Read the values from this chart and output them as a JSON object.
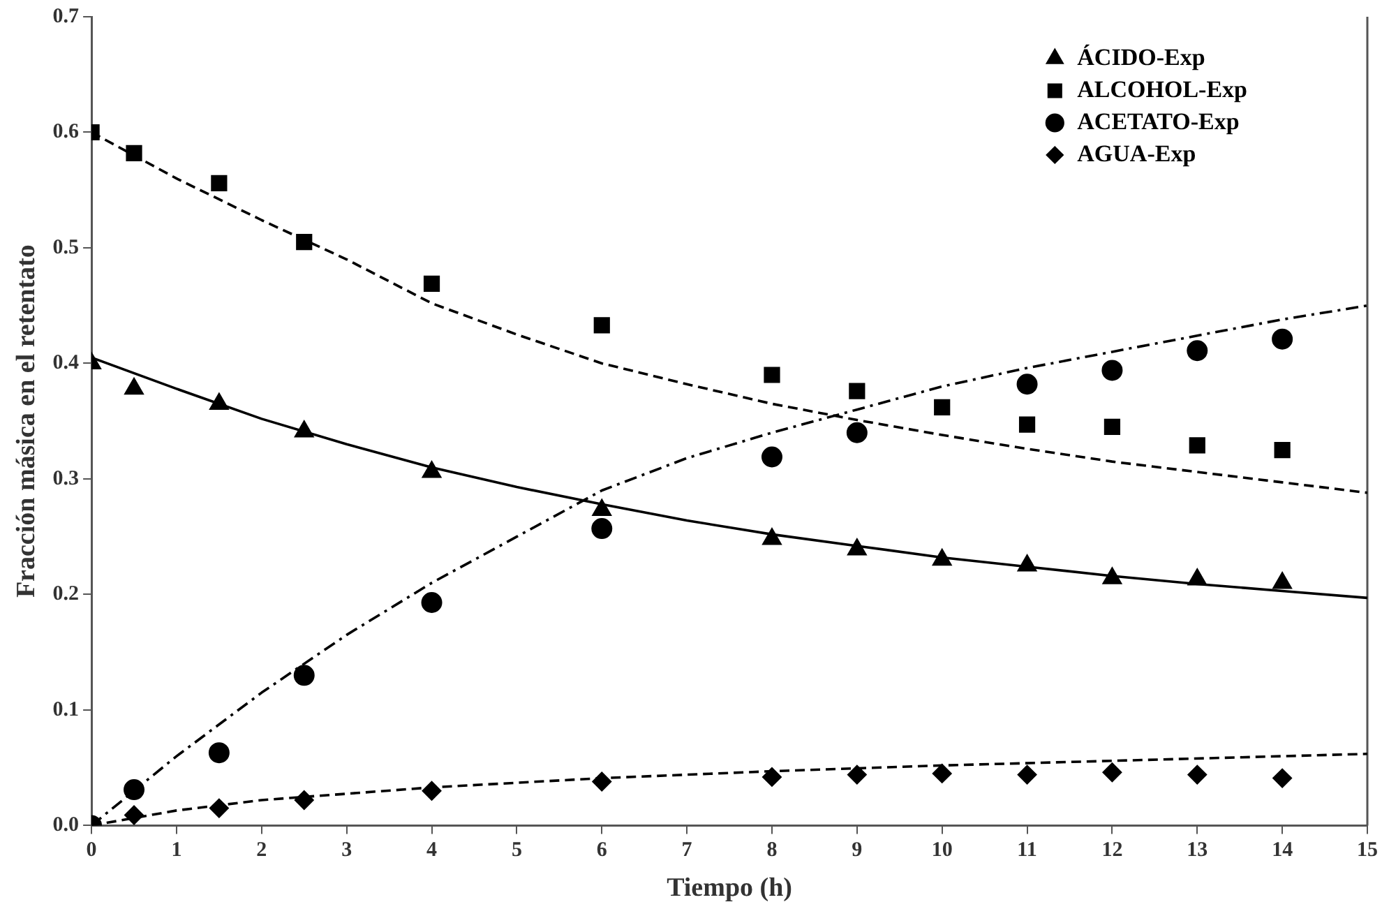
{
  "chart_data": {
    "type": "scatter",
    "xlabel": "Tiempo (h)",
    "ylabel": "Fracción másica en el retentato",
    "xlim": [
      0,
      15
    ],
    "xticks": [
      0,
      1,
      2,
      3,
      4,
      5,
      6,
      7,
      8,
      9,
      10,
      11,
      12,
      13,
      14,
      15
    ],
    "ylim": [
      0,
      0.7
    ],
    "yticks": [
      {
        "value": 0,
        "label": "0.0"
      },
      {
        "value": 0.1,
        "label": "0.1"
      },
      {
        "value": 0.2,
        "label": "0.2"
      },
      {
        "value": 0.3,
        "label": "0.3"
      },
      {
        "value": 0.4,
        "label": "0.4"
      },
      {
        "value": 0.5,
        "label": "0.5"
      },
      {
        "value": 0.6,
        "label": "0.6"
      },
      {
        "value": 0.7,
        "label": "0.7"
      }
    ],
    "grid": false,
    "legend": "top right",
    "x": [
      0,
      0.5,
      1.5,
      2.5,
      4,
      6,
      8,
      9,
      10,
      11,
      12,
      13,
      14
    ],
    "series": [
      {
        "name": "ÁCIDO-Exp",
        "color": "#000000",
        "marker": "triangle",
        "values": [
          0.4,
          0.378,
          0.365,
          0.341,
          0.306,
          0.273,
          0.248,
          0.239,
          0.23,
          0.225,
          0.214,
          0.213,
          0.21
        ]
      },
      {
        "name": "ALCOHOL-Exp",
        "color": "#000000",
        "marker": "square",
        "values": [
          0.6,
          0.582,
          0.556,
          0.505,
          0.469,
          0.433,
          0.39,
          0.376,
          0.362,
          0.347,
          0.345,
          0.329,
          0.325
        ]
      },
      {
        "name": "ACETATO-Exp",
        "color": "#000000",
        "marker": "circle",
        "values": [
          0,
          0.031,
          0.063,
          0.13,
          0.193,
          0.257,
          0.319,
          0.34,
          null,
          0.382,
          0.394,
          0.411,
          0.421
        ]
      },
      {
        "name": "AGUA-Exp",
        "color": "#000000",
        "marker": "diamond",
        "values": [
          null,
          0.009,
          0.015,
          0.022,
          0.03,
          0.038,
          0.042,
          0.044,
          0.045,
          0.044,
          0.046,
          0.044,
          0.041
        ]
      },
      {
        "type": "line",
        "color": "#000000",
        "line_style": "solid",
        "marker": "none",
        "x": [
          0,
          1,
          2,
          3,
          4,
          5,
          6,
          7,
          8,
          9,
          10,
          11,
          12,
          13,
          14,
          15
        ],
        "values": [
          0.405,
          0.378,
          0.352,
          0.33,
          0.31,
          0.293,
          0.278,
          0.264,
          0.252,
          0.242,
          0.232,
          0.224,
          0.216,
          0.209,
          0.203,
          0.197
        ]
      },
      {
        "type": "line",
        "color": "#000000",
        "line_style": "dashed",
        "marker": "none",
        "x": [
          0,
          1,
          2,
          3,
          4,
          5,
          6,
          7,
          8,
          9,
          10,
          11,
          12,
          13,
          14,
          15
        ],
        "values": [
          0.6,
          0.56,
          0.524,
          0.49,
          0.452,
          0.425,
          0.4,
          0.382,
          0.365,
          0.351,
          0.338,
          0.326,
          0.315,
          0.306,
          0.297,
          0.288
        ]
      },
      {
        "type": "line",
        "color": "#000000",
        "line_style": "dashdot",
        "marker": "none",
        "x": [
          0,
          0.5,
          1,
          2,
          3,
          4,
          5,
          6,
          7,
          8,
          9,
          10,
          11,
          12,
          13,
          14,
          15
        ],
        "values": [
          0,
          0.03,
          0.06,
          0.115,
          0.165,
          0.21,
          0.25,
          0.29,
          0.318,
          0.34,
          0.36,
          0.38,
          0.396,
          0.41,
          0.424,
          0.438,
          0.45
        ]
      },
      {
        "type": "line",
        "color": "#000000",
        "line_style": "dashed",
        "marker": "none",
        "x": [
          0,
          1,
          2,
          4,
          6,
          8,
          10,
          12,
          15
        ],
        "values": [
          0,
          0.013,
          0.022,
          0.033,
          0.041,
          0.047,
          0.052,
          0.056,
          0.062
        ]
      }
    ]
  }
}
